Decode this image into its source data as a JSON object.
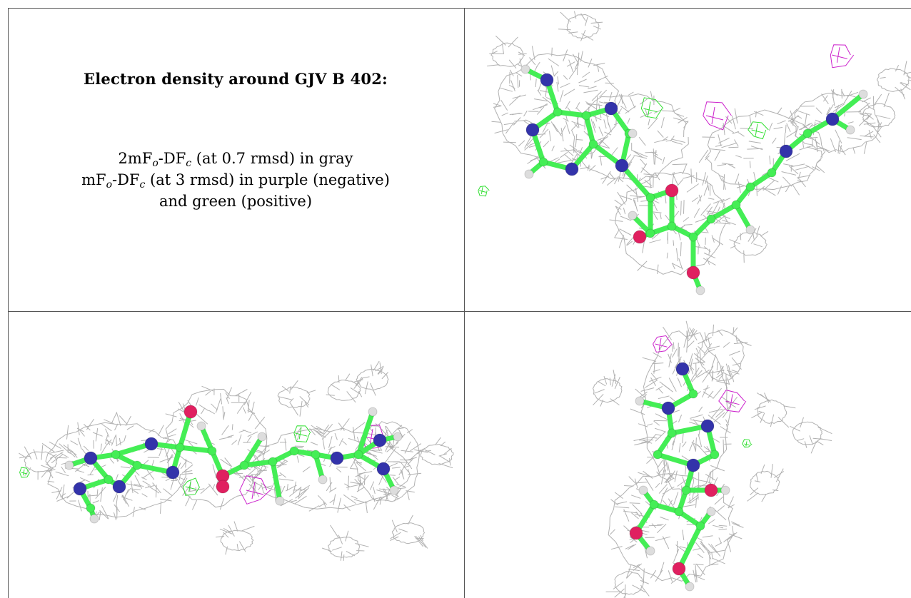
{
  "caption": {
    "title": "Electron density around GJV B 402:",
    "line1": {
      "prefix": "2mF",
      "sub1": "o",
      "mid": "-DF",
      "sub2": "c",
      "suffix": " (at 0.7 rmsd) in gray"
    },
    "line2": {
      "prefix": "mF",
      "sub1": "o",
      "mid": "-DF",
      "sub2": "c",
      "suffix": " (at 3 rmsd) in purple (negative)"
    },
    "line3": "and green (positive)"
  },
  "colors": {
    "mesh_2fofc": "#a9a9a9",
    "mesh_positive": "#33e033",
    "mesh_negative": "#cc22cc",
    "carbon": "#44ee55",
    "nitrogen": "#3333aa",
    "oxygen": "#e02060",
    "hydrogen": "#dddddd"
  },
  "views": [
    {
      "name": "top-right"
    },
    {
      "name": "bottom-left"
    },
    {
      "name": "bottom-right"
    }
  ]
}
